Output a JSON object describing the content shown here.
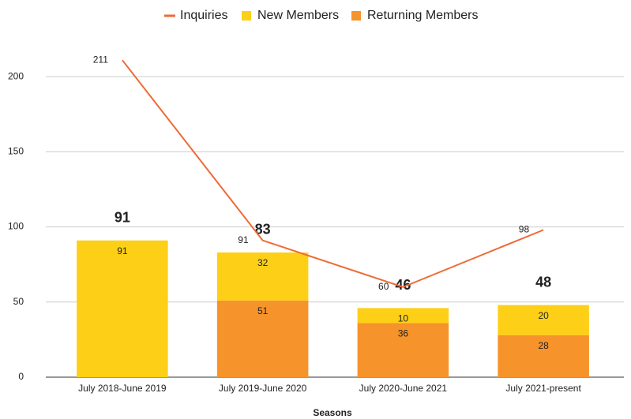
{
  "chart_data": {
    "type": "bar",
    "stacked": true,
    "x_label": "Seasons",
    "categories": [
      "July 2018-June 2019",
      "July 2019-June 2020",
      "July 2020-June 2021",
      "July 2021-present"
    ],
    "series": [
      {
        "name": "Inquiries",
        "type": "line",
        "color": "#ee6a35",
        "values": [
          211,
          91,
          60,
          98
        ]
      },
      {
        "name": "New Members",
        "type": "bar",
        "color": "#fdd017",
        "values": [
          91,
          32,
          10,
          20
        ]
      },
      {
        "name": "Returning Members",
        "type": "bar",
        "color": "#f6932a",
        "values": [
          0,
          51,
          36,
          28
        ]
      }
    ],
    "totals": [
      91,
      83,
      46,
      48
    ],
    "ylim": [
      0,
      230
    ],
    "yticks": [
      0,
      50,
      100,
      150,
      200
    ],
    "grid": true,
    "legend": "top"
  }
}
